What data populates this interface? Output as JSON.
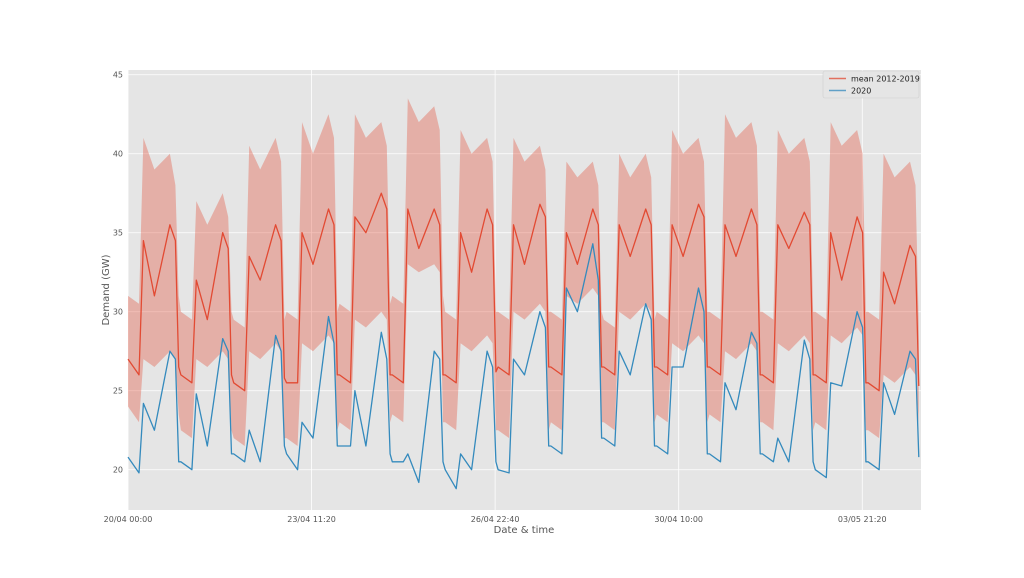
{
  "chart_data": {
    "type": "line",
    "title": "",
    "xlabel": "Date & time",
    "ylabel": "Demand (GW)",
    "xlim_hours": [
      0,
      360
    ],
    "ylim": [
      17.45,
      45.3
    ],
    "grid": true,
    "legend_position": "top-right",
    "x_ticks": [
      {
        "hour": 0,
        "label": "20/04 00:00"
      },
      {
        "hour": 83.333,
        "label": "23/04 11:20"
      },
      {
        "hour": 166.667,
        "label": "26/04 22:40"
      },
      {
        "hour": 250,
        "label": "30/04 10:00"
      },
      {
        "hour": 333.333,
        "label": "03/05 21:20"
      }
    ],
    "y_ticks": [
      20,
      25,
      30,
      35,
      40,
      45
    ],
    "profile_hours_of_day": [
      0,
      5,
      7,
      12,
      19,
      21.5,
      23
    ],
    "series": [
      {
        "name": "mean 2012-2019",
        "color": "#E24A33",
        "values": [
          [
            27,
            26,
            34.5,
            31,
            35.5,
            34.5,
            26.5
          ],
          [
            26,
            25.5,
            32,
            29.5,
            35,
            34,
            26
          ],
          [
            25.5,
            25,
            33.5,
            32,
            35.5,
            34.5,
            25.8
          ],
          [
            25.5,
            25.5,
            35,
            33,
            36.5,
            35.5,
            26
          ],
          [
            26,
            25.5,
            36,
            35,
            37.5,
            36.5,
            26
          ],
          [
            26,
            25.5,
            36.5,
            34,
            36.5,
            35.5,
            26
          ],
          [
            26,
            25.5,
            35,
            32.5,
            36.5,
            35.5,
            26.2
          ],
          [
            26.5,
            26,
            35.5,
            33,
            36.8,
            36,
            26.5
          ],
          [
            26.5,
            26,
            35,
            33,
            36.5,
            35.5,
            26.5
          ],
          [
            26.5,
            26,
            35.5,
            33.5,
            36.5,
            35.5,
            26.5
          ],
          [
            26.5,
            26,
            35.5,
            33.5,
            36.8,
            36,
            26.5
          ],
          [
            26.5,
            26,
            35.5,
            33.5,
            36.5,
            35.5,
            26
          ],
          [
            26,
            25.5,
            35.5,
            34,
            36.3,
            35.5,
            26
          ],
          [
            26,
            25.5,
            35,
            32,
            36,
            35,
            25.5
          ],
          [
            25.5,
            25,
            32.5,
            30.5,
            34.2,
            33.5,
            25.3
          ]
        ]
      },
      {
        "name": "2020",
        "color": "#348ABD",
        "values": [
          [
            20.8,
            19.8,
            24.2,
            22.5,
            27.5,
            27,
            20.5
          ],
          [
            20.5,
            20,
            24.8,
            21.5,
            28.3,
            27.5,
            21
          ],
          [
            21,
            20.5,
            22.5,
            20.5,
            28.5,
            27.5,
            21.5
          ],
          [
            21,
            20,
            23,
            22,
            29.7,
            28,
            21.5
          ],
          [
            21.5,
            21.5,
            25,
            21.5,
            28.7,
            27,
            21
          ],
          [
            20.5,
            20.5,
            21,
            19.2,
            27.5,
            27,
            20.5
          ],
          [
            20,
            18.8,
            21,
            20,
            27.5,
            26.5,
            20.5
          ],
          [
            20,
            19.8,
            27,
            26,
            30,
            29,
            21.5
          ],
          [
            21.5,
            21,
            31.5,
            30,
            34.3,
            32,
            22
          ],
          [
            22,
            21.5,
            27.5,
            26,
            30.5,
            29.5,
            21.5
          ],
          [
            21.5,
            21,
            26.5,
            26.5,
            31.5,
            30,
            21
          ],
          [
            21,
            20.5,
            25.5,
            23.8,
            28.7,
            28,
            21
          ],
          [
            21,
            20.5,
            22,
            20.5,
            28.2,
            27,
            20.5
          ],
          [
            20,
            19.5,
            25.5,
            25.3,
            30,
            29,
            20.5
          ],
          [
            20.5,
            20,
            25.5,
            23.5,
            27.5,
            27,
            20.8
          ]
        ]
      }
    ],
    "band": {
      "of_series": "mean 2012-2019",
      "color": "#E24A33",
      "opacity": 0.35,
      "upper": [
        [
          31,
          30.5,
          41,
          39,
          40,
          38,
          31
        ],
        [
          30,
          29.5,
          37,
          35.5,
          37.5,
          36,
          30
        ],
        [
          29.5,
          29,
          40.5,
          39,
          41,
          39.5,
          29.5
        ],
        [
          30,
          29.5,
          42,
          40,
          42.5,
          41,
          30
        ],
        [
          30.5,
          30,
          42.5,
          41,
          42,
          40.5,
          30.5
        ],
        [
          31,
          30.5,
          43.5,
          42,
          43,
          41.5,
          31
        ],
        [
          30,
          29.5,
          41.5,
          40,
          41,
          39.5,
          30
        ],
        [
          30,
          29.5,
          41,
          39.5,
          40.5,
          39,
          30
        ],
        [
          30,
          29.5,
          39.5,
          38.5,
          39.5,
          38,
          30
        ],
        [
          29.5,
          29,
          40,
          38.5,
          40,
          38.5,
          29.5
        ],
        [
          30,
          29.5,
          41.5,
          40,
          41,
          39.5,
          30
        ],
        [
          30,
          29.5,
          42.5,
          41,
          42,
          40.5,
          30
        ],
        [
          30,
          29.5,
          41.5,
          40,
          41,
          39.5,
          30
        ],
        [
          30,
          29.5,
          42,
          40.5,
          41.5,
          40,
          30
        ],
        [
          30,
          29.5,
          40,
          38.5,
          39.5,
          38,
          29
        ]
      ],
      "lower": [
        [
          24,
          23,
          27,
          26.5,
          27.5,
          27,
          23.5
        ],
        [
          22.5,
          22,
          27,
          26.5,
          27.5,
          27,
          22.5
        ],
        [
          22,
          21.5,
          27.5,
          27,
          28,
          27.5,
          22
        ],
        [
          22,
          21.5,
          28,
          27.5,
          28.5,
          28,
          22.5
        ],
        [
          23,
          22.5,
          29.5,
          29,
          30,
          29.5,
          23
        ],
        [
          23.5,
          23,
          33,
          32.5,
          33,
          32.5,
          23
        ],
        [
          23,
          22.5,
          28,
          27.5,
          28.5,
          28,
          22.5
        ],
        [
          22.5,
          22,
          30,
          29.5,
          30.5,
          30,
          22.5
        ],
        [
          23,
          22.5,
          31,
          30.5,
          31.5,
          31,
          23
        ],
        [
          23,
          22.5,
          30,
          29.5,
          30.5,
          30,
          23
        ],
        [
          23.5,
          23,
          28,
          27.5,
          28.5,
          28,
          23
        ],
        [
          23.5,
          23,
          27.5,
          27,
          28,
          27.5,
          23
        ],
        [
          23,
          22.5,
          28,
          27.5,
          28.5,
          28,
          22.5
        ],
        [
          23,
          22.5,
          28.5,
          28,
          29,
          28.5,
          22.5
        ],
        [
          22.5,
          22,
          26,
          25.5,
          26.5,
          26,
          23
        ]
      ]
    }
  }
}
